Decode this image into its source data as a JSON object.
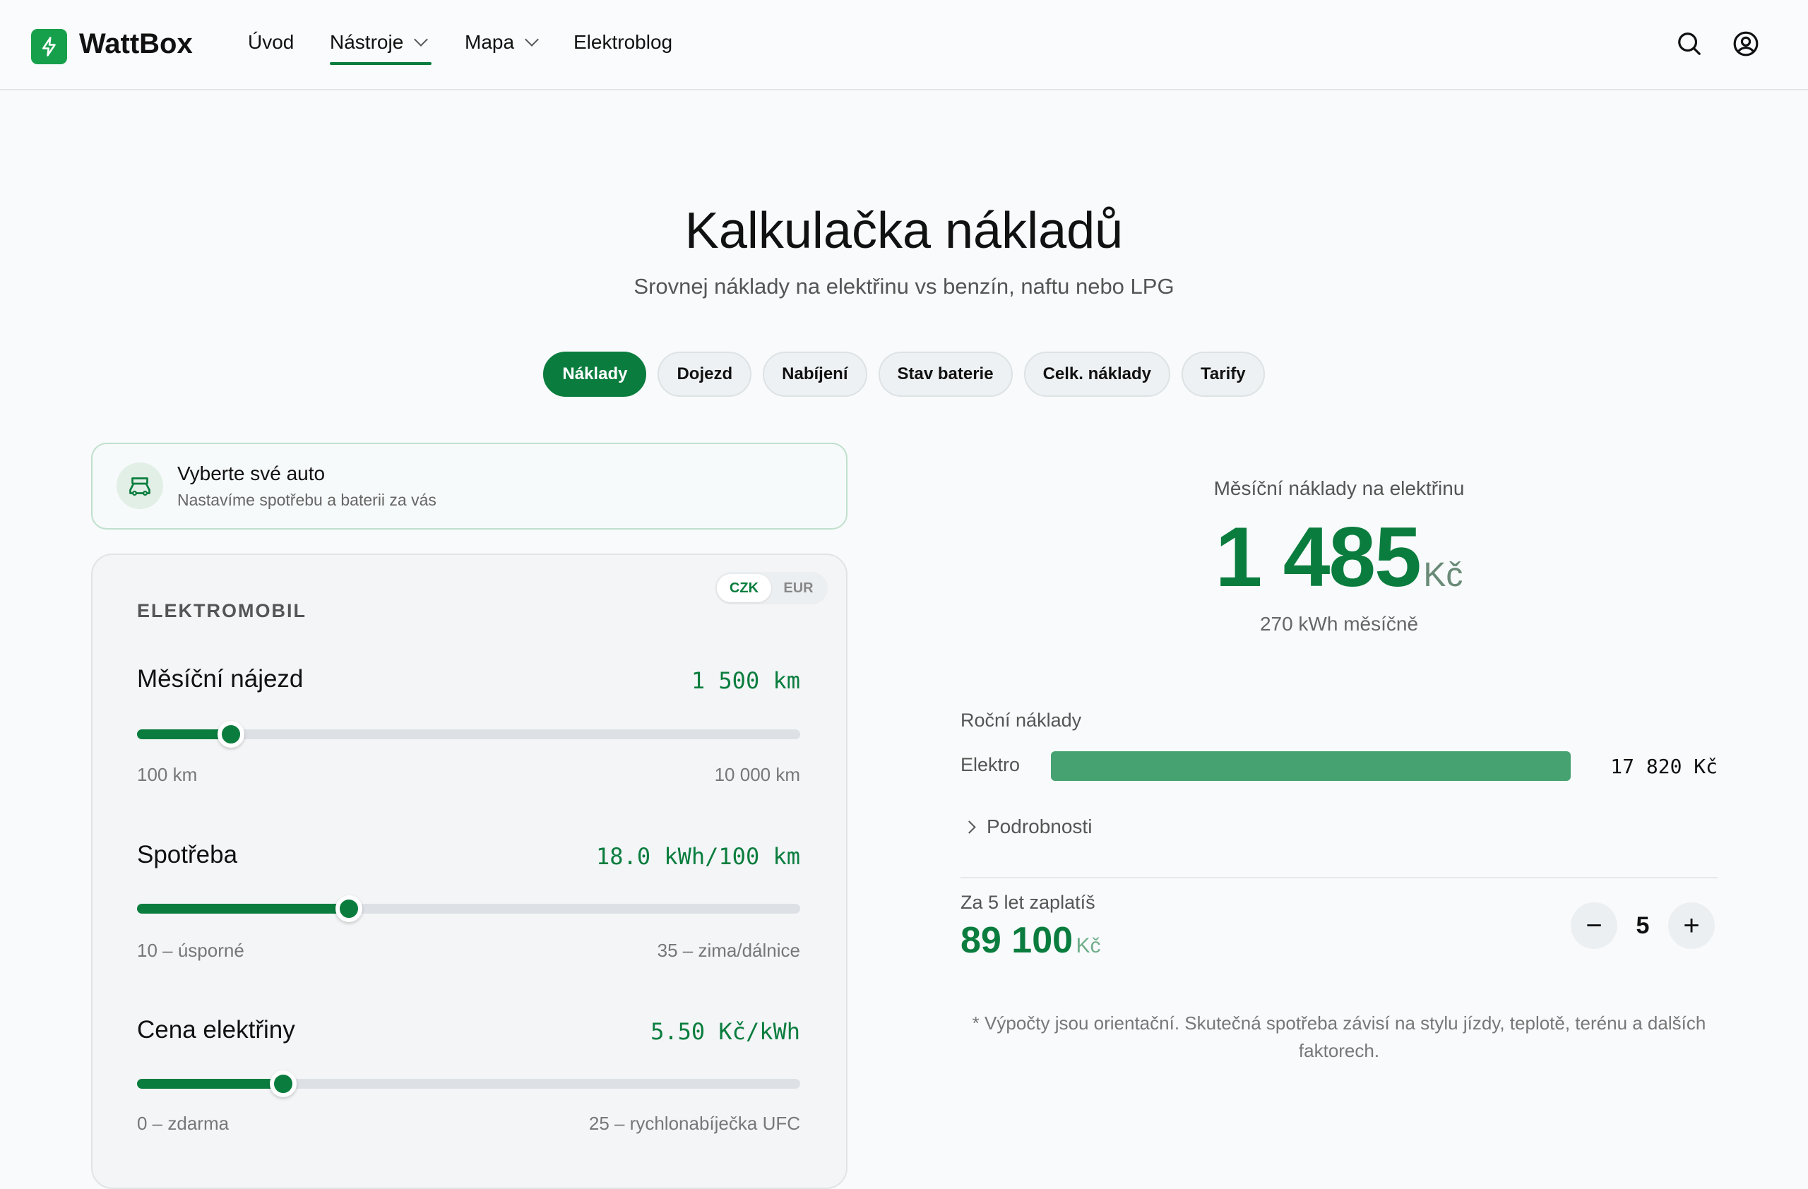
{
  "header": {
    "brand": "WattBox",
    "nav": [
      {
        "label": "Úvod",
        "dropdown": false
      },
      {
        "label": "Nástroje",
        "dropdown": true,
        "active": true
      },
      {
        "label": "Mapa",
        "dropdown": true
      },
      {
        "label": "Elektroblog",
        "dropdown": false
      }
    ],
    "icons": [
      "search-icon",
      "user-icon"
    ]
  },
  "page": {
    "title": "Kalkulačka nákladů",
    "subtitle": "Srovnej náklady na elektřinu vs benzín, naftu nebo LPG",
    "tabs": [
      "Náklady",
      "Dojezd",
      "Nabíjení",
      "Stav baterie",
      "Celk. náklady",
      "Tarify"
    ],
    "active_tab": "Náklady"
  },
  "car_select": {
    "title": "Vyberte své auto",
    "subtitle": "Nastavíme spotřebu a baterii za vás"
  },
  "panel": {
    "section": "ELEKTROMOBIL",
    "currency": {
      "options": [
        "CZK",
        "EUR"
      ],
      "selected": "CZK"
    },
    "sliders": [
      {
        "label": "Měsíční nájezd",
        "display": "1 500 km",
        "value": 1500,
        "min": 100,
        "max": 10000,
        "min_label": "100 km",
        "max_label": "10 000 km"
      },
      {
        "label": "Spotřeba",
        "display": "18.0 kWh/100 km",
        "value": 18,
        "min": 10,
        "max": 35,
        "min_label": "10 – úsporné",
        "max_label": "35 – zima/dálnice"
      },
      {
        "label": "Cena elektřiny",
        "display": "5.50 Kč/kWh",
        "value": 5.5,
        "min": 0,
        "max": 25,
        "min_label": "0 – zdarma",
        "max_label": "25 – rychlonabíječka UFC"
      }
    ]
  },
  "results": {
    "monthly_label": "Měsíční náklady na elektřinu",
    "monthly_value": "1 485",
    "monthly_unit": "Kč",
    "monthly_kwh": "270 kWh měsíčně",
    "annual_label": "Roční náklady",
    "annual_rows": [
      {
        "label": "Elektro",
        "value": "17 820 Kč",
        "fraction": 1.0
      }
    ],
    "details_label": "Podrobnosti",
    "years_label": "Za 5 let zaplatíš",
    "years_total": "89 100",
    "years_unit": "Kč",
    "years": "5",
    "footnote": "* Výpočty jsou orientační. Skutečná spotřeba závisí na stylu jízdy, teplotě, terénu a dalších faktorech."
  },
  "colors": {
    "accent": "#0a7d3e",
    "bar": "#46a271",
    "background": "#f8fafb"
  }
}
